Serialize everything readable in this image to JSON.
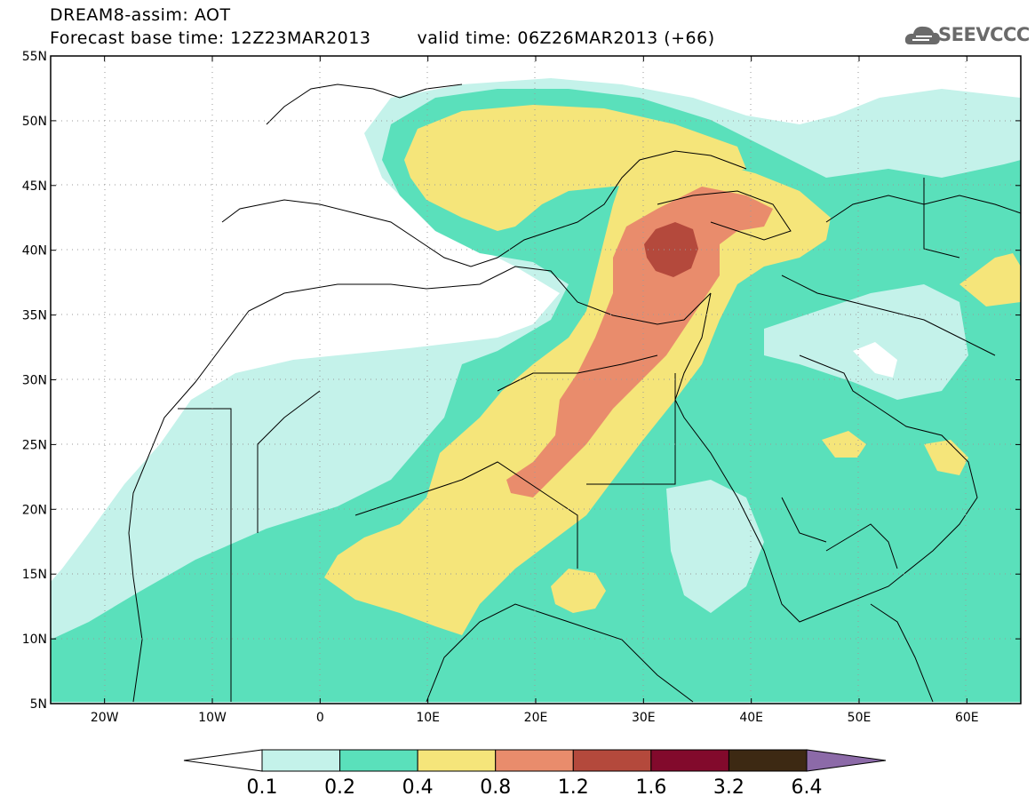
{
  "header": {
    "line1": "DREAM8-assim: AOT",
    "base_label": "Forecast base time: 12Z23MAR2013",
    "valid_label": "valid time: 06Z26MAR2013 (+66)"
  },
  "logo": {
    "text": "SEEVCCC",
    "icon": "cloud-icon",
    "color": "#6a6a6a"
  },
  "map": {
    "lon_range": [
      -25,
      65
    ],
    "lat_range": [
      5,
      55
    ],
    "x_ticks": [
      "20W",
      "10W",
      "0",
      "10E",
      "20E",
      "30E",
      "40E",
      "50E",
      "60E"
    ],
    "y_ticks": [
      "5N",
      "10N",
      "15N",
      "20N",
      "25N",
      "30N",
      "35N",
      "40N",
      "45N",
      "50N",
      "55N"
    ],
    "grid": "dotted"
  },
  "colorbar": {
    "labels": [
      "0.1",
      "0.2",
      "0.4",
      "0.8",
      "1.2",
      "1.6",
      "3.2",
      "6.4"
    ],
    "colors": [
      "#ffffff",
      "#c4f2ea",
      "#5ae0bb",
      "#f5e57a",
      "#e98c6c",
      "#b4493c",
      "#820a2c",
      "#3d2913",
      "#8c6aa8"
    ]
  }
}
